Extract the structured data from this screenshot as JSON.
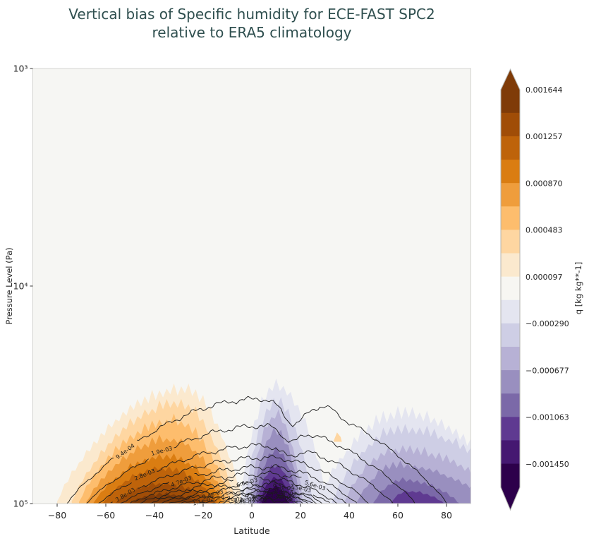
{
  "chart_data": {
    "type": "filled_contour",
    "title": "Vertical bias of Specific humidity for ECE-FAST SPC2\nrelative to ERA5 climatology",
    "xlabel": "Latitude",
    "ylabel": "Pressure Level (Pa)",
    "x_range": [
      -90,
      90
    ],
    "x_ticks": [
      "−80",
      "−60",
      "−40",
      "−20",
      "0",
      "20",
      "40",
      "60",
      "80"
    ],
    "y_scale": "log",
    "y_range_pa": [
      100000,
      1000
    ],
    "y_ticks": [
      {
        "label": "10³",
        "p": 1000
      },
      {
        "label": "10⁴",
        "p": 10000
      },
      {
        "label": "10⁵",
        "p": 100000
      }
    ],
    "style": {
      "title_color": "#2f4f4f",
      "figure_bg": "#ffffff",
      "axes_bg": "#f6f6f3",
      "spine_color": "#d4d4d0",
      "tick_color": "#333333",
      "label_color": "#262626",
      "contour_color": "#1b1b1b"
    },
    "colorbar": {
      "label": "q [kg kg**-1]",
      "tick_labels": [
        "0.001644",
        "0.001257",
        "0.000870",
        "0.000483",
        "0.000097",
        "−0.000290",
        "−0.000677",
        "−0.001063",
        "−0.001450"
      ],
      "colors": [
        "#7f3b08",
        "#a04d07",
        "#be630a",
        "#da7d12",
        "#ef9d3c",
        "#fdbd6d",
        "#fed6a1",
        "#fbe9ce",
        "#f7f6f2",
        "#e4e5f0",
        "#cecee5",
        "#b7b1d5",
        "#998fbf",
        "#7b69a8",
        "#5f3a91",
        "#451871",
        "#2d004b"
      ],
      "arrow_top": "#7f3b08",
      "arrow_bottom": "#2d004b"
    },
    "contour_lines": {
      "units": "kg kg**-1",
      "levels": [
        {
          "label": "9.4e-04",
          "lat_min": -76,
          "peak_lat": 4,
          "lat_max": 80,
          "peak_p": 33000,
          "labels_at": [
            -52
          ],
          "mods": [
            {
              "c": 17,
              "w": 6,
              "d": 0.1
            },
            {
              "c": 31,
              "w": 5,
              "d": -0.025
            }
          ]
        },
        {
          "label": "1.9e-03",
          "lat_min": -68,
          "peak_lat": 5,
          "lat_max": 67,
          "peak_p": 44000,
          "labels_at": [
            -37
          ],
          "mods": [
            {
              "c": 16,
              "w": 5,
              "d": 0.06
            }
          ]
        },
        {
          "label": "2.8e-03",
          "lat_min": -63,
          "peak_lat": 6,
          "lat_max": 58,
          "peak_p": 54000,
          "labels_at": [
            -44
          ],
          "mods": [
            {
              "c": 15,
              "w": 5,
              "d": 0.04
            }
          ]
        },
        {
          "label": "3.8e-03",
          "lat_min": -58,
          "peak_lat": 6,
          "lat_max": 48,
          "peak_p": 61500,
          "labels_at": [
            -52
          ]
        },
        {
          "label": "4.7e-03",
          "lat_min": -54,
          "peak_lat": 6,
          "lat_max": 43,
          "peak_p": 68000,
          "labels_at": [
            -29
          ]
        },
        {
          "label": "5.6e-03",
          "lat_min": -50,
          "peak_lat": 7,
          "lat_max": 39,
          "peak_p": 73000,
          "labels_at": [
            26
          ]
        },
        {
          "label": "6.6e-03",
          "lat_min": -46,
          "peak_lat": 7,
          "lat_max": 35,
          "peak_p": 77500,
          "labels_at": [
            -2
          ]
        },
        {
          "label": "7.5e-03",
          "lat_min": -42,
          "peak_lat": 7,
          "lat_max": 32,
          "peak_p": 81000,
          "labels_at": [
            20
          ]
        },
        {
          "label": "8.5e-03",
          "lat_min": -38,
          "peak_lat": 8,
          "lat_max": 29,
          "peak_p": 84000,
          "labels_at": [
            13
          ]
        },
        {
          "label": "9.4e-03",
          "lat_min": -34,
          "peak_lat": 8,
          "lat_max": 27,
          "peak_p": 86500,
          "labels_at": [
            -16
          ]
        },
        {
          "label": "1.0e-02",
          "lat_min": -30,
          "peak_lat": 8,
          "lat_max": 25,
          "peak_p": 88500,
          "labels_at": [
            14
          ]
        },
        {
          "label": "1.1e-02",
          "lat_min": -26,
          "peak_lat": 9,
          "lat_max": 23,
          "peak_p": 90500,
          "labels_at": [
            -20
          ]
        },
        {
          "label": "1.2e-02",
          "lat_min": -22,
          "peak_lat": 9,
          "lat_max": 21,
          "peak_p": 92000,
          "labels_at": [
            -8,
            13
          ]
        },
        {
          "label": "1.3e-02",
          "lat_min": -17,
          "peak_lat": 9,
          "lat_max": 19,
          "peak_p": 93500,
          "labels_at": [
            -3
          ]
        },
        {
          "label": "1.4e-02",
          "lat_min": -12,
          "peak_lat": 10,
          "lat_max": 17.5,
          "peak_p": 95000,
          "labels_at": [
            2,
            12
          ]
        },
        {
          "label": "1.5e-02",
          "lat_min": -6,
          "peak_lat": 10,
          "lat_max": 15.5,
          "peak_p": 96200,
          "labels_at": [
            -3
          ]
        }
      ]
    },
    "bias_bands": [
      {
        "ci": 7,
        "lat_min": -80,
        "peak_lat": -28,
        "lat_max": -4,
        "top_p": 31000,
        "jag": 0.04
      },
      {
        "ci": 6,
        "lat_min": -74,
        "peak_lat": -30,
        "lat_max": -7,
        "top_p": 36000,
        "jag": 0.036
      },
      {
        "ci": 5,
        "lat_min": -71,
        "peak_lat": -32,
        "lat_max": -9,
        "top_p": 43000,
        "jag": 0.034
      },
      {
        "ci": 4,
        "lat_min": -68,
        "peak_lat": -33,
        "lat_max": -11,
        "top_p": 52000,
        "jag": 0.03
      },
      {
        "ci": 3,
        "lat_min": -65,
        "peak_lat": -35,
        "lat_max": -12,
        "top_p": 62000,
        "jag": 0.026
      },
      {
        "ci": 2,
        "lat_min": -61,
        "peak_lat": -37,
        "lat_max": -14,
        "top_p": 70000,
        "jag": 0.02
      },
      {
        "ci": 1,
        "lat_min": -56,
        "peak_lat": -38,
        "lat_max": -15,
        "top_p": 82000,
        "jag": 0.015
      },
      {
        "ci": 0,
        "lat_min": -50,
        "peak_lat": -36,
        "lat_max": -19,
        "top_p": 91500,
        "jag": 0.012
      },
      {
        "ci": 9,
        "lat_min": -5,
        "peak_lat": 10,
        "lat_max": 31,
        "top_p": 30000,
        "jag": 0.042
      },
      {
        "ci": 10,
        "lat_min": -3,
        "peak_lat": 10,
        "lat_max": 25,
        "top_p": 35500,
        "jag": 0.036
      },
      {
        "ci": 11,
        "lat_min": -1,
        "peak_lat": 10,
        "lat_max": 21,
        "top_p": 40500,
        "jag": 0.032
      },
      {
        "ci": 12,
        "lat_min": 0,
        "peak_lat": 10,
        "lat_max": 20,
        "top_p": 48000,
        "jag": 0.028
      },
      {
        "ci": 13,
        "lat_min": 1,
        "peak_lat": 10,
        "lat_max": 19,
        "top_p": 58000,
        "jag": 0.022
      },
      {
        "ci": 14,
        "lat_min": 2,
        "peak_lat": 10,
        "lat_max": 18,
        "top_p": 68000,
        "jag": 0.016
      },
      {
        "ci": 15,
        "lat_min": 3,
        "peak_lat": 10,
        "lat_max": 17,
        "top_p": 77000,
        "jag": 0.012
      },
      {
        "ci": 16,
        "lat_min": 4,
        "peak_lat": 10,
        "lat_max": 15,
        "top_p": 84500,
        "jag": 0.009
      },
      {
        "ci": 9,
        "lat_min": 27,
        "peak_lat": 63,
        "lat_max": 108,
        "top_p": 40000,
        "jag": 0.045
      },
      {
        "ci": 10,
        "lat_min": 33,
        "peak_lat": 62,
        "lat_max": 112,
        "top_p": 47000,
        "jag": 0.038
      },
      {
        "ci": 11,
        "lat_min": 38,
        "peak_lat": 60,
        "lat_max": 106,
        "top_p": 58000,
        "jag": 0.03
      },
      {
        "ci": 12,
        "lat_min": 43,
        "peak_lat": 60,
        "lat_max": 98,
        "top_p": 68000,
        "jag": 0.022
      },
      {
        "ci": 13,
        "lat_min": 50,
        "peak_lat": 62,
        "lat_max": 85,
        "top_p": 79000,
        "jag": 0.015
      },
      {
        "ci": 14,
        "lat_min": 57,
        "peak_lat": 64,
        "lat_max": 79,
        "top_p": 88500,
        "jag": 0.009
      },
      {
        "ci": 6,
        "lat_min": 33.5,
        "peak_lat": 35,
        "lat_max": 37,
        "top_p": 47000,
        "bottom_p": 52000,
        "jag": 0.004
      }
    ]
  }
}
